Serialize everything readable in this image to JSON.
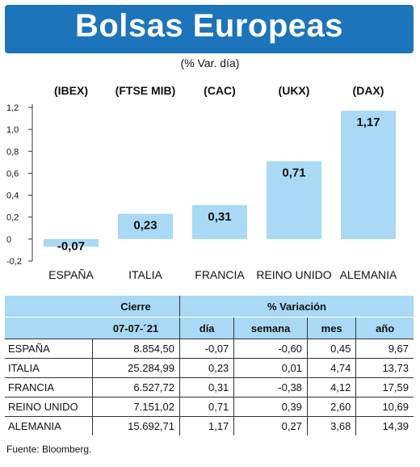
{
  "header": {
    "title": "Bolsas Europeas",
    "subtitle": "(% Var. día)"
  },
  "chart_data": {
    "type": "bar",
    "categories": [
      "ESPAÑA",
      "ITALIA",
      "FRANCIA",
      "REINO UNIDO",
      "ALEMANIA"
    ],
    "index_labels": [
      "(IBEX)",
      "(FTSE MIB)",
      "(CAC)",
      "(UKX)",
      "(DAX)"
    ],
    "values": [
      -0.07,
      0.23,
      0.31,
      0.71,
      1.17
    ],
    "value_labels": [
      "-0,07",
      "0,23",
      "0,31",
      "0,71",
      "1,17"
    ],
    "y_ticks": [
      "1,2",
      "1,0",
      "0,8",
      "0,6",
      "0,4",
      "0,2",
      "0",
      "-0,2"
    ],
    "y_tick_values": [
      1.2,
      1.0,
      0.8,
      0.6,
      0.4,
      0.2,
      0,
      -0.2
    ],
    "ylim": [
      -0.2,
      1.2
    ],
    "bar_color": "#a9d9f4",
    "grid": false
  },
  "table": {
    "header_row1": [
      "",
      "Cierre",
      "% Variación"
    ],
    "header_row2": [
      "",
      "07-07-´21",
      "día",
      "semana",
      "mes",
      "año"
    ],
    "rows": [
      [
        "ESPAÑA",
        "8.854,50",
        "-0,07",
        "-0,60",
        "0,45",
        "9,67"
      ],
      [
        "ITALIA",
        "25.284,99",
        "0,23",
        "0,01",
        "4,74",
        "13,73"
      ],
      [
        "FRANCIA",
        "6.527,72",
        "0,31",
        "-0,38",
        "4,12",
        "17,59"
      ],
      [
        "REINO UNIDO",
        "7.151,02",
        "0,71",
        "0,39",
        "2,60",
        "10,69"
      ],
      [
        "ALEMANIA",
        "15.692,71",
        "1,17",
        "0,27",
        "3,68",
        "14,39"
      ]
    ],
    "header_color": "#a9d9f4"
  },
  "source": "Fuente: Bloomberg."
}
